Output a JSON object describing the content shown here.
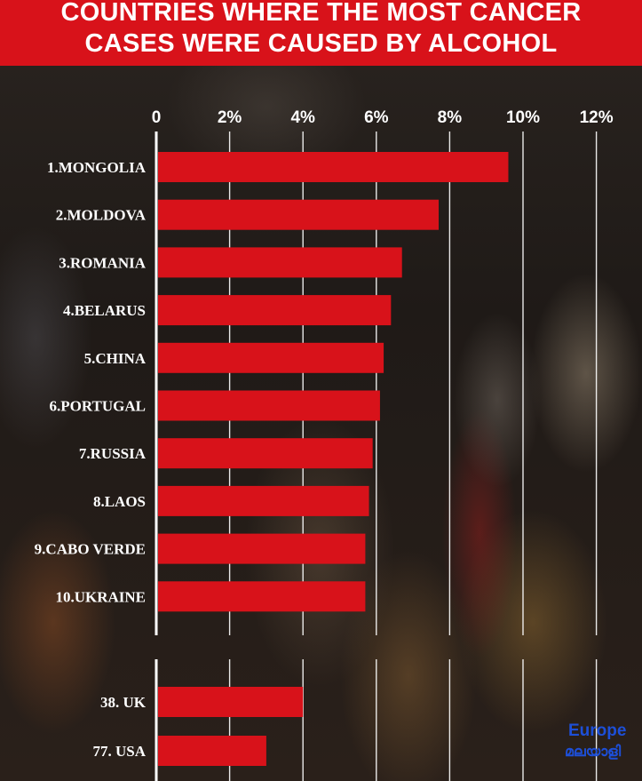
{
  "header": {
    "title_line1": "COUNTRIES WHERE THE MOST CANCER",
    "title_line2": "CASES WERE CAUSED BY ALCOHOL"
  },
  "colors": {
    "header_bg": "#d8121a",
    "bar": "#d8121a",
    "text": "#ffffff",
    "gridline": "#ffffff"
  },
  "logo": {
    "word": "Europe",
    "sub": "മലയാളി"
  },
  "chart_data": {
    "type": "bar",
    "orientation": "horizontal",
    "title": "",
    "xlabel": "",
    "ylabel": "",
    "xlim": [
      0,
      12
    ],
    "x_ticks": [
      "0",
      "2%",
      "4%",
      "6%",
      "8%",
      "10%",
      "12%"
    ],
    "grid": true,
    "categories": [
      "1.MONGOLIA",
      "2.MOLDOVA",
      "3.ROMANIA",
      "4.BELARUS",
      "5.CHINA",
      "6.PORTUGAL",
      "7.RUSSIA",
      "8.LAOS",
      "9.CABO VERDE",
      "10.UKRAINE",
      "38. UK",
      "77. USA"
    ],
    "values": [
      9.6,
      7.7,
      6.7,
      6.4,
      6.2,
      6.1,
      5.9,
      5.8,
      5.7,
      5.7,
      4.0,
      3.0
    ]
  }
}
